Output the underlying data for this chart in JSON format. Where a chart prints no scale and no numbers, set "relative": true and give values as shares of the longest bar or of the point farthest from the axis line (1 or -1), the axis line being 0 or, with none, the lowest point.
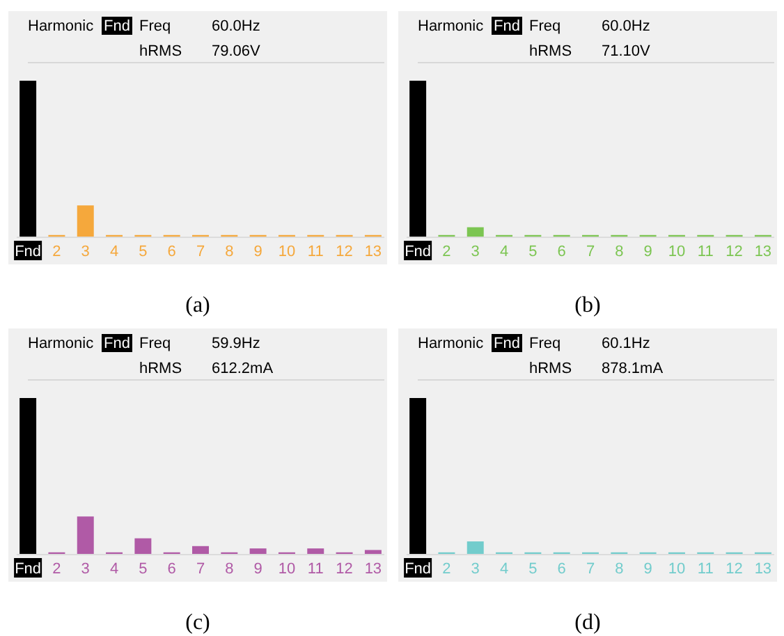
{
  "chart_data": [
    {
      "type": "bar",
      "relative": true,
      "categories": [
        "Fnd",
        "2",
        "3",
        "4",
        "5",
        "6",
        "7",
        "8",
        "9",
        "10",
        "11",
        "12",
        "13"
      ],
      "values": [
        1,
        0.01,
        0.2,
        0.01,
        0.01,
        0.01,
        0.01,
        0.01,
        0.01,
        0.01,
        0.01,
        0.01,
        0.01
      ],
      "colors": [
        "#000000",
        "#f5a83c",
        "#f5a83c",
        "#f5a83c",
        "#f5a83c",
        "#f5a83c",
        "#f5a83c",
        "#f5a83c",
        "#f5a83c",
        "#f5a83c",
        "#f5a83c",
        "#f5a83c",
        "#f5a83c"
      ],
      "annotations": [
        "Harmonic",
        "Fnd",
        "Freq",
        "60.0Hz",
        "hRMS",
        "79.06V",
        "(a)"
      ]
    },
    {
      "type": "bar",
      "relative": true,
      "categories": [
        "Fnd",
        "2",
        "3",
        "4",
        "5",
        "6",
        "7",
        "8",
        "9",
        "10",
        "11",
        "12",
        "13"
      ],
      "values": [
        1,
        0.01,
        0.06,
        0.01,
        0.01,
        0.01,
        0.01,
        0.01,
        0.01,
        0.01,
        0.01,
        0.01,
        0.01
      ],
      "colors": [
        "#000000",
        "#7cc552",
        "#7cc552",
        "#7cc552",
        "#7cc552",
        "#7cc552",
        "#7cc552",
        "#7cc552",
        "#7cc552",
        "#7cc552",
        "#7cc552",
        "#7cc552",
        "#7cc552"
      ],
      "annotations": [
        "Harmonic",
        "Fnd",
        "Freq",
        "60.0Hz",
        "hRMS",
        "71.10V",
        "(b)"
      ]
    },
    {
      "type": "bar",
      "relative": true,
      "categories": [
        "Fnd",
        "2",
        "3",
        "4",
        "5",
        "6",
        "7",
        "8",
        "9",
        "10",
        "11",
        "12",
        "13"
      ],
      "values": [
        1,
        0.01,
        0.24,
        0.01,
        0.1,
        0.01,
        0.05,
        0.01,
        0.035,
        0.01,
        0.035,
        0.01,
        0.025
      ],
      "colors": [
        "#000000",
        "#b05aa6",
        "#b05aa6",
        "#b05aa6",
        "#b05aa6",
        "#b05aa6",
        "#b05aa6",
        "#b05aa6",
        "#b05aa6",
        "#b05aa6",
        "#b05aa6",
        "#b05aa6",
        "#b05aa6"
      ],
      "annotations": [
        "Harmonic",
        "Fnd",
        "Freq",
        "59.9Hz",
        "hRMS",
        "612.2mA",
        "(c)"
      ]
    },
    {
      "type": "bar",
      "relative": true,
      "categories": [
        "Fnd",
        "2",
        "3",
        "4",
        "5",
        "6",
        "7",
        "8",
        "9",
        "10",
        "11",
        "12",
        "13"
      ],
      "values": [
        1,
        0.01,
        0.08,
        0.01,
        0.01,
        0.01,
        0.01,
        0.01,
        0.01,
        0.01,
        0.01,
        0.01,
        0.01
      ],
      "colors": [
        "#000000",
        "#72cccc",
        "#72cccc",
        "#72cccc",
        "#72cccc",
        "#72cccc",
        "#72cccc",
        "#72cccc",
        "#72cccc",
        "#72cccc",
        "#72cccc",
        "#72cccc",
        "#72cccc"
      ],
      "annotations": [
        "Harmonic",
        "Fnd",
        "Freq",
        "60.1Hz",
        "hRMS",
        "878.1mA",
        "(d)"
      ]
    }
  ]
}
